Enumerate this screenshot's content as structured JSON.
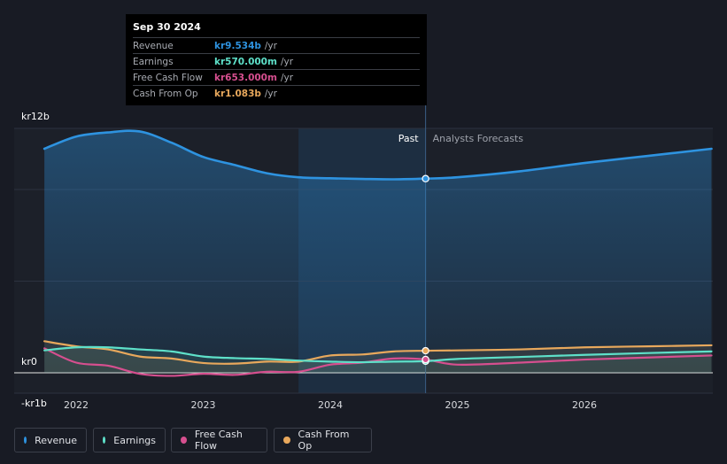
{
  "chart_data": {
    "type": "area",
    "title": "",
    "x_ticks": [
      "2022",
      "2023",
      "2024",
      "2025",
      "2026"
    ],
    "y_ticks": [
      {
        "label": "kr12b",
        "value": 12
      },
      {
        "label": "kr0",
        "value": 0
      },
      {
        "label": "-kr1b",
        "value": -1
      }
    ],
    "ylim": [
      -1,
      12
    ],
    "xlim": [
      2021.6,
      2027.0
    ],
    "divider_x": 2024.75,
    "shade_start_x": 2023.75,
    "past_label": "Past",
    "forecast_label": "Analysts Forecasts",
    "units": "kr billions",
    "series": [
      {
        "name": "Revenue",
        "color": "#2e93e0",
        "x": [
          2021.75,
          2022.0,
          2022.25,
          2022.5,
          2022.75,
          2023.0,
          2023.25,
          2023.5,
          2023.75,
          2024.0,
          2024.25,
          2024.5,
          2024.75,
          2025.0,
          2025.5,
          2026.0,
          2026.5,
          2027.0
        ],
        "values": [
          11.0,
          11.6,
          11.8,
          11.85,
          11.3,
          10.6,
          10.2,
          9.8,
          9.6,
          9.55,
          9.52,
          9.5,
          9.534,
          9.6,
          9.9,
          10.3,
          10.65,
          11.0
        ]
      },
      {
        "name": "Earnings",
        "color": "#5ee0c9",
        "x": [
          2021.75,
          2022.0,
          2022.25,
          2022.5,
          2022.75,
          2023.0,
          2023.25,
          2023.5,
          2023.75,
          2024.0,
          2024.25,
          2024.5,
          2024.75,
          2025.0,
          2025.5,
          2026.0,
          2026.5,
          2027.0
        ],
        "values": [
          1.1,
          1.25,
          1.25,
          1.15,
          1.05,
          0.8,
          0.72,
          0.68,
          0.6,
          0.55,
          0.52,
          0.55,
          0.57,
          0.68,
          0.78,
          0.88,
          0.97,
          1.05
        ]
      },
      {
        "name": "Free Cash Flow",
        "color": "#d64f8f",
        "x": [
          2021.75,
          2022.0,
          2022.25,
          2022.5,
          2022.75,
          2023.0,
          2023.25,
          2023.5,
          2023.75,
          2024.0,
          2024.25,
          2024.5,
          2024.75,
          2025.0,
          2025.5,
          2026.0,
          2026.5,
          2027.0
        ],
        "values": [
          1.2,
          0.5,
          0.35,
          -0.05,
          -0.15,
          -0.05,
          -0.1,
          0.05,
          0.05,
          0.4,
          0.5,
          0.7,
          0.653,
          0.4,
          0.5,
          0.65,
          0.75,
          0.85
        ]
      },
      {
        "name": "Cash From Op",
        "color": "#e8a85c",
        "x": [
          2021.75,
          2022.0,
          2022.25,
          2022.5,
          2022.75,
          2023.0,
          2023.25,
          2023.5,
          2023.75,
          2024.0,
          2024.25,
          2024.5,
          2024.75,
          2025.0,
          2025.5,
          2026.0,
          2026.5,
          2027.0
        ],
        "values": [
          1.55,
          1.3,
          1.15,
          0.8,
          0.7,
          0.48,
          0.45,
          0.55,
          0.55,
          0.85,
          0.9,
          1.05,
          1.083,
          1.1,
          1.15,
          1.25,
          1.3,
          1.35
        ]
      }
    ]
  },
  "tooltip": {
    "date": "Sep 30 2024",
    "rows": [
      {
        "label": "Revenue",
        "value": "kr9.534b",
        "unit": "/yr",
        "color": "#2e93e0"
      },
      {
        "label": "Earnings",
        "value": "kr570.000m",
        "unit": "/yr",
        "color": "#5ee0c9"
      },
      {
        "label": "Free Cash Flow",
        "value": "kr653.000m",
        "unit": "/yr",
        "color": "#d64f8f"
      },
      {
        "label": "Cash From Op",
        "value": "kr1.083b",
        "unit": "/yr",
        "color": "#e8a85c"
      }
    ]
  },
  "legend": [
    {
      "label": "Revenue",
      "color": "#2e93e0"
    },
    {
      "label": "Earnings",
      "color": "#5ee0c9"
    },
    {
      "label": "Free Cash Flow",
      "color": "#d64f8f"
    },
    {
      "label": "Cash From Op",
      "color": "#e8a85c"
    }
  ]
}
